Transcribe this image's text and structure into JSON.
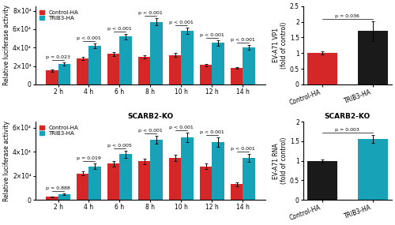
{
  "chart_data": [
    {
      "type": "bar",
      "categories": [
        "2 h",
        "4 h",
        "6 h",
        "8 h",
        "10 h",
        "12 h",
        "14 h"
      ],
      "series": [
        {
          "name": "Control-HA",
          "color": "#d62728",
          "values": [
            1.5,
            2.8,
            3.3,
            3.0,
            3.2,
            2.1,
            1.8
          ],
          "errors": [
            0.12,
            0.15,
            0.2,
            0.18,
            0.22,
            0.15,
            0.12
          ]
        },
        {
          "name": "TRIB3-HA",
          "color": "#17a2b8",
          "values": [
            2.2,
            4.2,
            5.2,
            6.8,
            5.8,
            4.5,
            4.0
          ],
          "errors": [
            0.18,
            0.25,
            0.3,
            0.35,
            0.35,
            0.3,
            0.25
          ]
        }
      ],
      "ylabel": "Relative luciferase activity",
      "ylim": [
        0,
        8.5
      ],
      "yticks": [
        0,
        {
          "value": 2,
          "label": "2×10⁴"
        },
        {
          "value": 4,
          "label": "4×10⁴"
        },
        {
          "value": 6,
          "label": "6×10⁴"
        },
        {
          "value": 8,
          "label": "8×10⁴"
        }
      ],
      "legend": "upper left",
      "annotations": [
        {
          "text": "p = 0.023",
          "category": "2 h"
        },
        {
          "text": "p < 0.001",
          "category": "4 h"
        },
        {
          "text": "p < 0.001",
          "category": "6 h"
        },
        {
          "text": "p < 0.001",
          "category": "8 h"
        },
        {
          "text": "p < 0.001",
          "category": "10 h"
        },
        {
          "text": "p < 0.001",
          "category": "12 h"
        },
        {
          "text": "p < 0.001",
          "category": "14 h"
        }
      ]
    },
    {
      "type": "bar",
      "title": "SCARB2-KO",
      "categories": [
        "2 h",
        "4 h",
        "6 h",
        "8 h",
        "10 h",
        "12 h",
        "14 h"
      ],
      "series": [
        {
          "name": "Control-HA",
          "color": "#d62728",
          "values": [
            0.25,
            2.2,
            3.0,
            3.2,
            3.5,
            2.8,
            1.3
          ],
          "errors": [
            0.05,
            0.18,
            0.22,
            0.22,
            0.28,
            0.22,
            0.18
          ]
        },
        {
          "name": "TRIB3-HA",
          "color": "#17a2b8",
          "values": [
            0.45,
            2.8,
            3.8,
            5.0,
            5.2,
            4.8,
            3.5
          ],
          "errors": [
            0.07,
            0.22,
            0.28,
            0.32,
            0.38,
            0.38,
            0.32
          ]
        }
      ],
      "ylabel": "Relative luciferase activity",
      "ylim": [
        0,
        6.5
      ],
      "yticks": [
        0,
        {
          "value": 2,
          "label": "2×10⁴"
        },
        {
          "value": 4,
          "label": "4×10⁴"
        },
        {
          "value": 6,
          "label": "6×10⁴"
        }
      ],
      "legend": "upper left",
      "annotations": [
        {
          "text": "p = 0.888",
          "category": "2 h"
        },
        {
          "text": "p = 0.019",
          "category": "4 h"
        },
        {
          "text": "p < 0.005",
          "category": "6 h"
        },
        {
          "text": "p < 0.001",
          "category": "8 h"
        },
        {
          "text": "p < 0.001",
          "category": "10 h"
        },
        {
          "text": "p < 0.001",
          "category": "12 h"
        },
        {
          "text": "p < 0.001",
          "category": "14 h"
        }
      ]
    },
    {
      "type": "bar",
      "categories": [
        "Control-HA",
        "TRIB3-HA"
      ],
      "values": [
        1.0,
        1.7
      ],
      "errors": [
        0.05,
        0.32
      ],
      "colors": [
        "#d62728",
        "#1a1a1a"
      ],
      "ylabel": "EV-A71 VP1\n(fold of control)",
      "ylim": [
        0,
        2.5
      ],
      "yticks": [
        0,
        0.5,
        1,
        1.5,
        2,
        2.5
      ],
      "annotations": [
        {
          "text": "p = 0.036"
        }
      ]
    },
    {
      "type": "bar",
      "title": "SCARB2-KO",
      "categories": [
        "Control-HA",
        "TRIB3-HA"
      ],
      "values": [
        1.0,
        1.55
      ],
      "errors": [
        0.04,
        0.1
      ],
      "colors": [
        "#1a1a1a",
        "#17a2b8"
      ],
      "ylabel": "EV-A71 RNA\n(fold of control)",
      "ylim": [
        0,
        2.0
      ],
      "yticks": [
        0,
        0.5,
        1,
        1.5,
        2
      ],
      "annotations": [
        {
          "text": "p = 0.003"
        }
      ]
    }
  ]
}
